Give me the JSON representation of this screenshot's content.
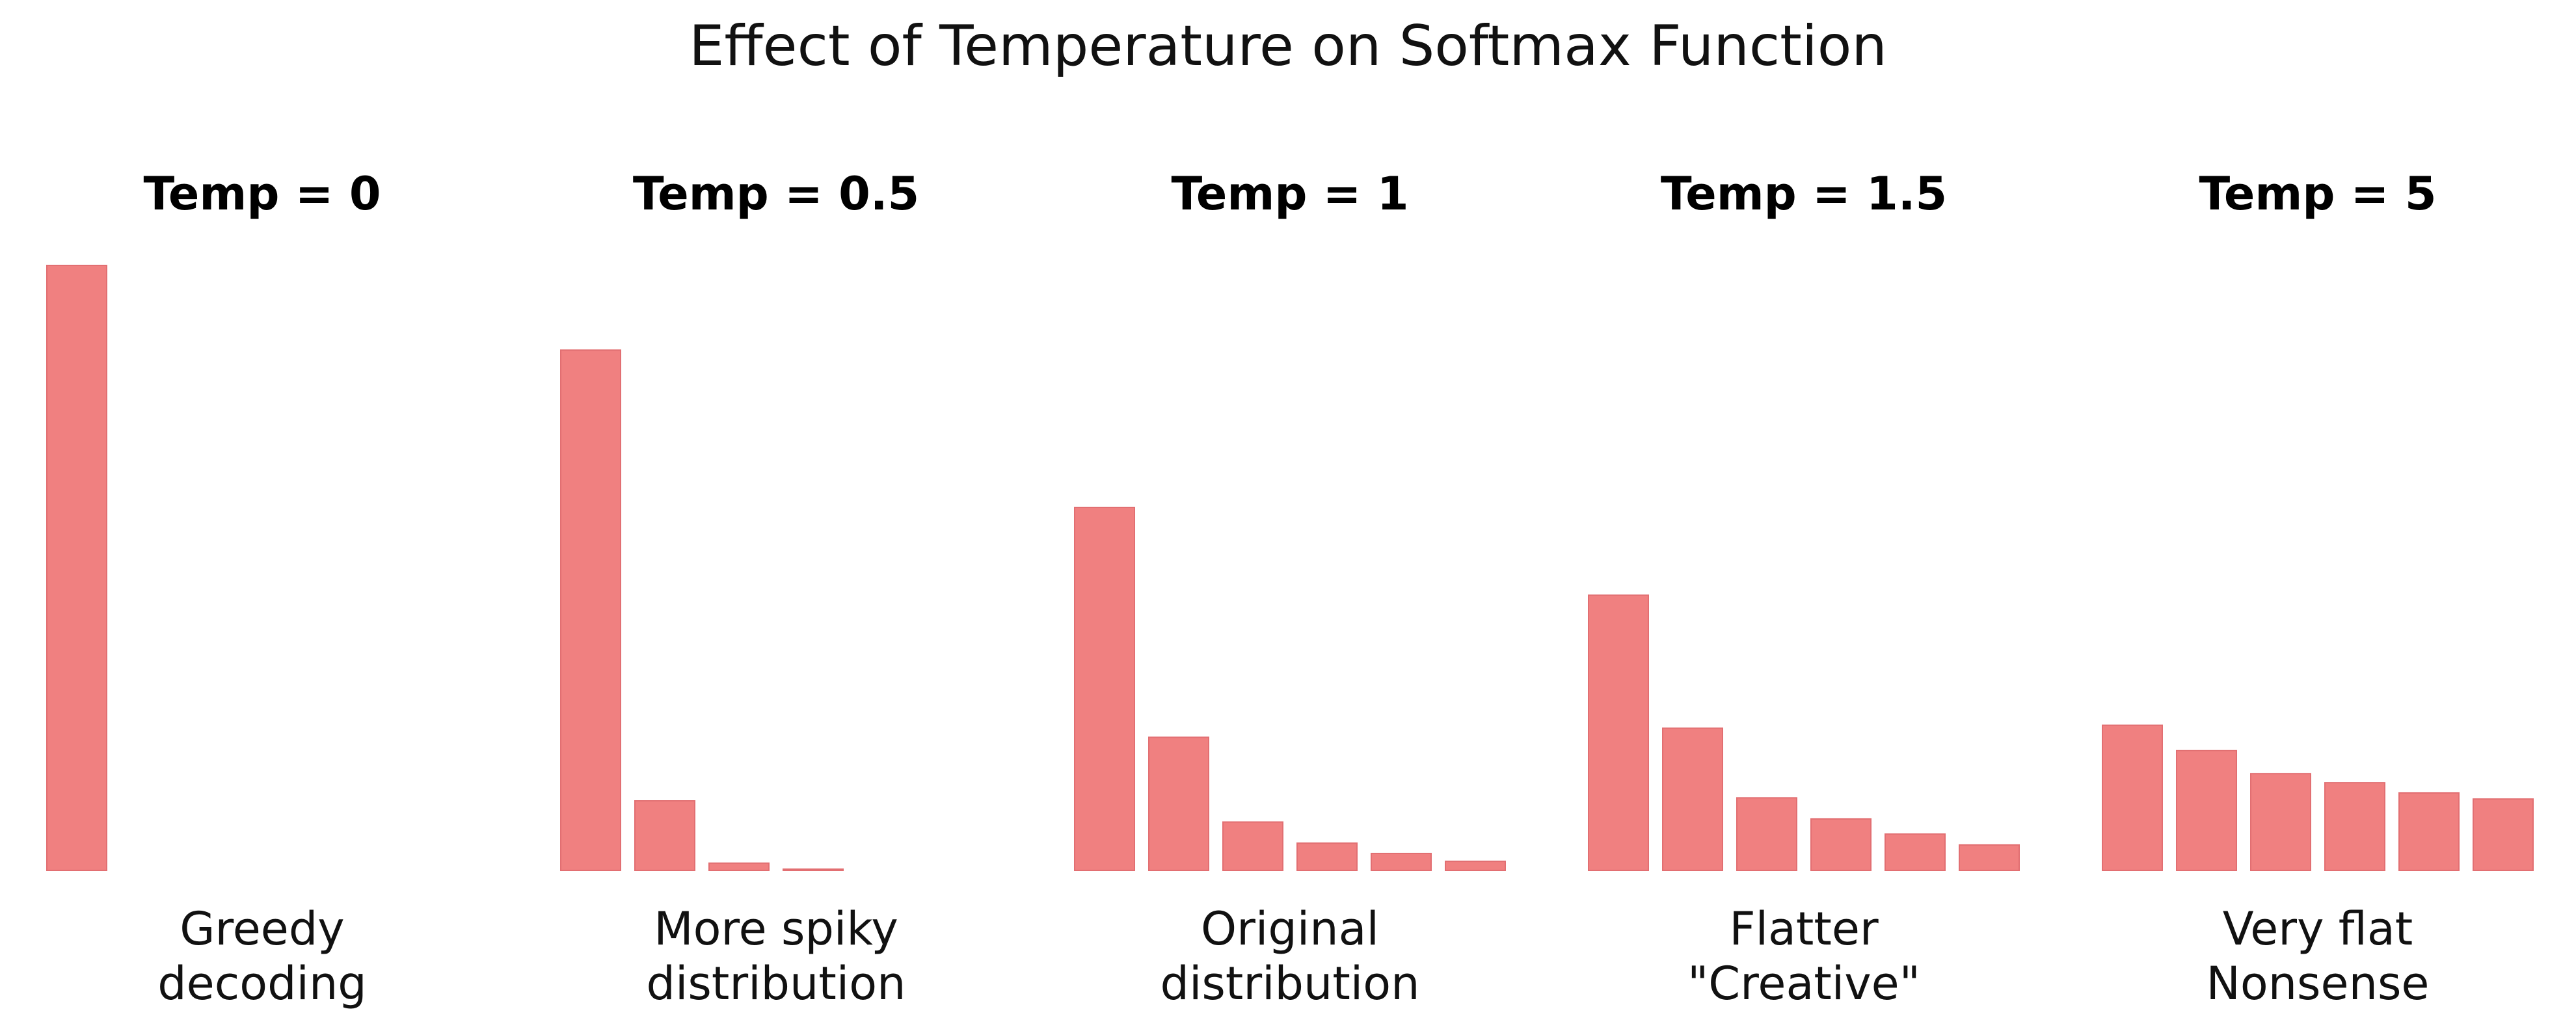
{
  "title": "Effect of Temperature on Softmax Function",
  "colors": {
    "bar_fill": "#f08080",
    "bar_stroke": "#e26f72",
    "text": "#111111"
  },
  "chart_data": [
    {
      "type": "bar",
      "title": "Temp = 0",
      "caption": [
        "Greedy",
        "decoding"
      ],
      "values": [
        1.0,
        0,
        0,
        0,
        0,
        0
      ],
      "ylim": [
        0,
        1
      ],
      "grid": false,
      "axes_visible": false
    },
    {
      "type": "bar",
      "title": "Temp = 0.5",
      "caption": [
        "More spiky",
        "distribution"
      ],
      "values": [
        0.86,
        0.115,
        0.012,
        0.002,
        0,
        0
      ],
      "ylim": [
        0,
        1
      ],
      "grid": false,
      "axes_visible": false
    },
    {
      "type": "bar",
      "title": "Temp = 1",
      "caption": [
        "Original",
        "distribution"
      ],
      "values": [
        0.6,
        0.22,
        0.08,
        0.045,
        0.028,
        0.015
      ],
      "ylim": [
        0,
        1
      ],
      "grid": false,
      "axes_visible": false
    },
    {
      "type": "bar",
      "title": "Temp = 1.5",
      "caption": [
        "Flatter",
        "\"Creative\""
      ],
      "values": [
        0.455,
        0.235,
        0.12,
        0.085,
        0.06,
        0.042
      ],
      "ylim": [
        0,
        1
      ],
      "grid": false,
      "axes_visible": false
    },
    {
      "type": "bar",
      "title": "Temp = 5",
      "caption": [
        "Very flat",
        "Nonsense"
      ],
      "values": [
        0.24,
        0.198,
        0.16,
        0.145,
        0.128,
        0.118
      ],
      "ylim": [
        0,
        1
      ],
      "grid": false,
      "axes_visible": false
    }
  ]
}
